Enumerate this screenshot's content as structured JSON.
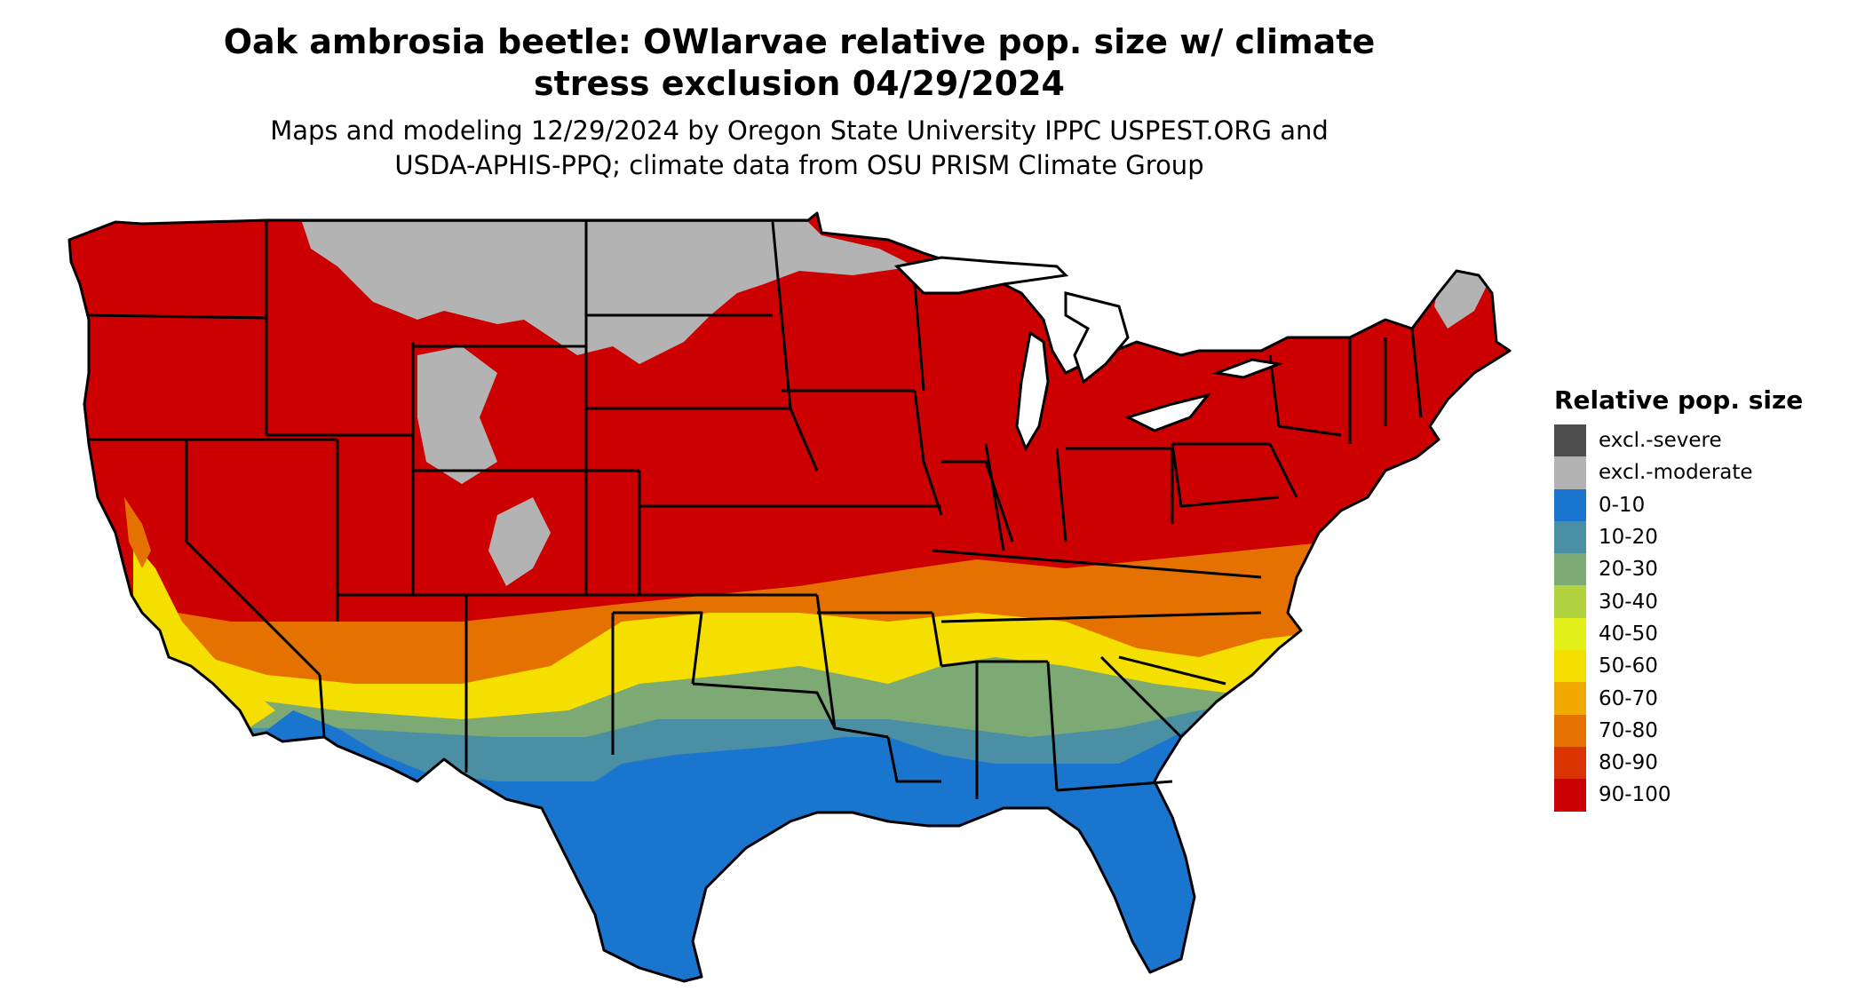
{
  "title_lines": [
    "Oak ambrosia beetle: OWlarvae relative pop. size w/ climate",
    "stress exclusion 04/29/2024"
  ],
  "subtitle_lines": [
    "Maps and modeling 12/29/2024 by Oregon State University IPPC USPEST.ORG and",
    "USDA-APHIS-PPQ; climate data from OSU PRISM Climate Group"
  ],
  "legend": {
    "title": "Relative pop. size",
    "items": [
      {
        "label": "excl.-severe",
        "color": "#4d4d4d"
      },
      {
        "label": "excl.-moderate",
        "color": "#b3b3b3"
      },
      {
        "label": "0-10",
        "color": "#1a75cf"
      },
      {
        "label": "10-20",
        "color": "#4a8fa3"
      },
      {
        "label": "20-30",
        "color": "#7daa74"
      },
      {
        "label": "30-40",
        "color": "#b1d33f"
      },
      {
        "label": "40-50",
        "color": "#e3ef19"
      },
      {
        "label": "50-60",
        "color": "#f5df00"
      },
      {
        "label": "60-70",
        "color": "#f0a900"
      },
      {
        "label": "70-80",
        "color": "#e57200"
      },
      {
        "label": "80-90",
        "color": "#d93300"
      },
      {
        "label": "90-100",
        "color": "#cc0000"
      }
    ]
  }
}
